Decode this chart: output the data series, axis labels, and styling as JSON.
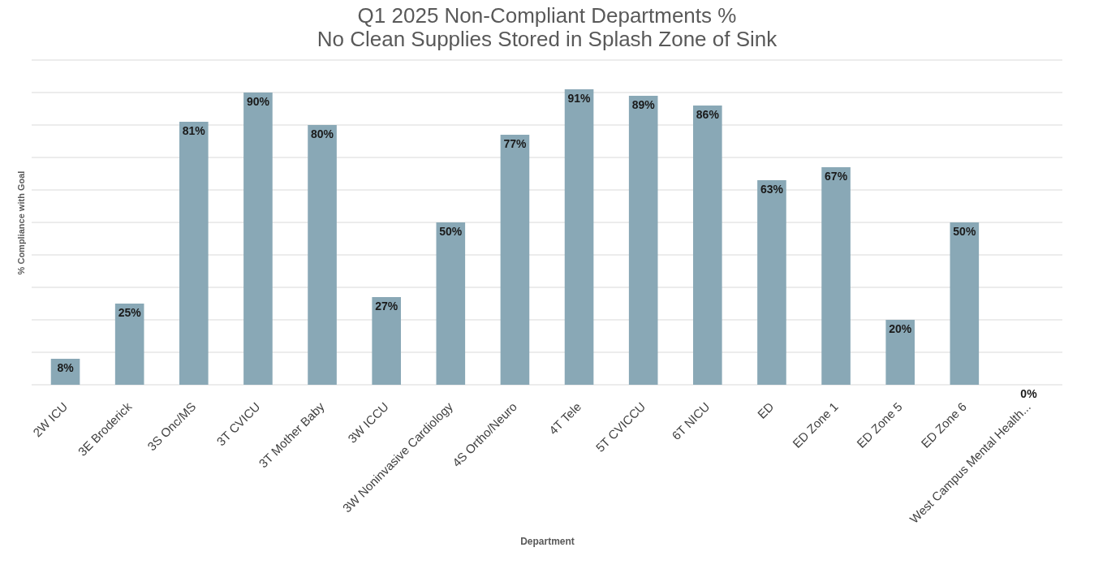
{
  "chart_data": {
    "type": "bar",
    "title": "Q1 2025 Non-Compliant Departments %",
    "subtitle": "No Clean Supplies Stored in Splash Zone of Sink",
    "xlabel": "Department",
    "ylabel": "% Compliance with Goal",
    "categories": [
      "2W ICU",
      "3E Broderick",
      "3S Onc/MS",
      "3T CVICU",
      "3T Mother Baby",
      "3W ICCU",
      "3W Noninvasive Cardiology",
      "4S Ortho/Neuro",
      "4T Tele",
      "5T CVICCU",
      "6T NICU",
      "ED",
      "ED Zone 1",
      "ED Zone 5",
      "ED Zone 6",
      "West Campus Mental Health..."
    ],
    "values": [
      8,
      25,
      81,
      90,
      80,
      27,
      50,
      77,
      91,
      89,
      86,
      63,
      67,
      20,
      50,
      0
    ],
    "value_labels": [
      "8%",
      "25%",
      "81%",
      "90%",
      "80%",
      "27%",
      "50%",
      "77%",
      "91%",
      "89%",
      "86%",
      "63%",
      "67%",
      "20%",
      "50%",
      "0%"
    ],
    "color": "#89a8b6",
    "ylim": [
      0,
      100
    ],
    "yticks": [
      {
        "value": 0,
        "label": null
      },
      {
        "value": 10,
        "label": null
      },
      {
        "value": 20,
        "label": null
      },
      {
        "value": 30,
        "label": null
      },
      {
        "value": 40,
        "label": null
      },
      {
        "value": 50,
        "label": null
      },
      {
        "value": 60,
        "label": null
      },
      {
        "value": 70,
        "label": null
      },
      {
        "value": 80,
        "label": null
      },
      {
        "value": 90,
        "label": null
      },
      {
        "value": 100,
        "label": null
      }
    ],
    "grid": "y",
    "tick_labels": "x"
  }
}
